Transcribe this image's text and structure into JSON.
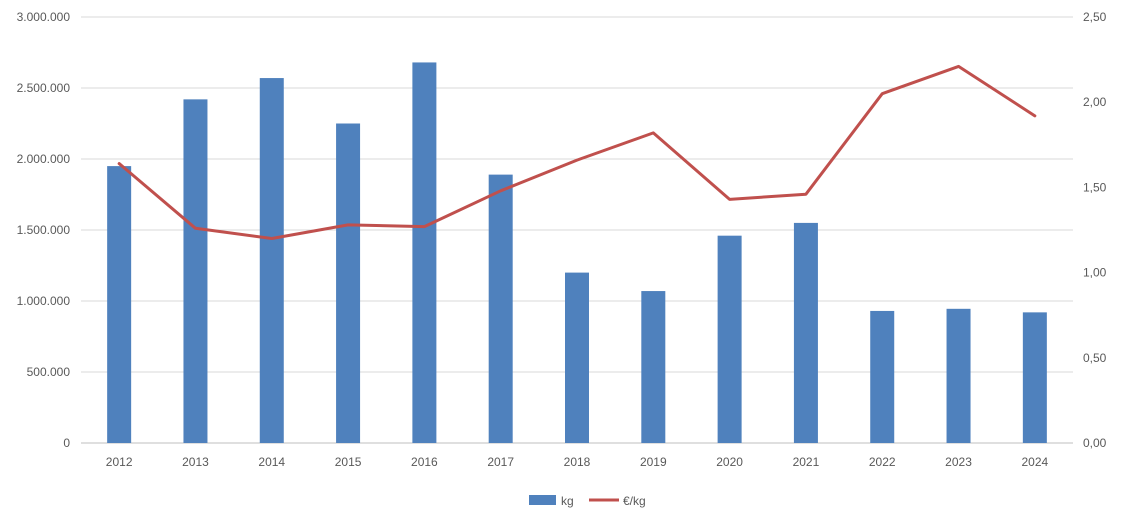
{
  "chart_data": {
    "type": "combo",
    "title": "",
    "categories": [
      "2012",
      "2013",
      "2014",
      "2015",
      "2016",
      "2017",
      "2018",
      "2019",
      "2020",
      "2021",
      "2022",
      "2023",
      "2024"
    ],
    "series": [
      {
        "name": "kg",
        "type": "bar",
        "axis": "left",
        "color": "#4f81bd",
        "values": [
          1950000,
          2420000,
          2570000,
          2250000,
          2680000,
          1890000,
          1200000,
          1070000,
          1460000,
          1550000,
          930000,
          945000,
          920000
        ]
      },
      {
        "name": "€/kg",
        "type": "line",
        "axis": "right",
        "color": "#c0504d",
        "values": [
          1.64,
          1.26,
          1.2,
          1.28,
          1.27,
          1.48,
          1.66,
          1.82,
          1.43,
          1.46,
          2.05,
          2.21,
          1.92
        ]
      }
    ],
    "left_axis": {
      "min": 0,
      "max": 3000000,
      "step": 500000,
      "tick_labels": [
        "0",
        "500.000",
        "1.000.000",
        "1.500.000",
        "2.000.000",
        "2.500.000",
        "3.000.000"
      ]
    },
    "right_axis": {
      "min": 0,
      "max": 2.5,
      "step": 0.5,
      "tick_labels": [
        "0,00",
        "0,50",
        "1,00",
        "1,50",
        "2,00",
        "2,50"
      ]
    },
    "legend": {
      "position": "bottom",
      "entries": [
        "kg",
        "€/kg"
      ]
    },
    "grid": true
  },
  "colors": {
    "bar": "#4f81bd",
    "line": "#c0504d",
    "gridline": "#d9d9d9",
    "axis_line": "#bfbfbf",
    "tick_text": "#595959",
    "background": "#ffffff"
  }
}
